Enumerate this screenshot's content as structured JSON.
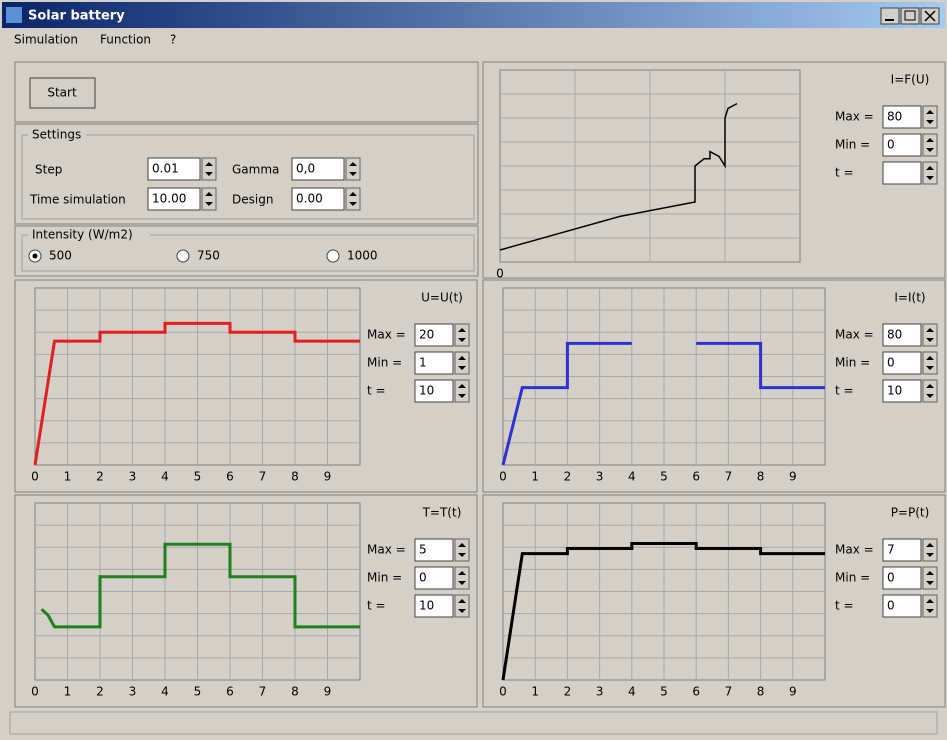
{
  "window": {
    "title": "Solar battery"
  },
  "menu": [
    "Simulation",
    "Function",
    "?"
  ],
  "start_button": "Start",
  "settings": {
    "title": "Settings",
    "fields": [
      {
        "label": "Step",
        "value": "0.01"
      },
      {
        "label": "Gamma",
        "value": "0,0"
      },
      {
        "label": "Time simulation",
        "value": "10.00"
      },
      {
        "label": "Design",
        "value": "0.00"
      }
    ]
  },
  "intensity": {
    "title": "Intensity (W/m2)",
    "options": [
      "500",
      "750",
      "1000"
    ],
    "selected": 0
  },
  "plots": [
    {
      "title": "I=F(U)",
      "color": "#000000",
      "xlim": [
        0,
        10
      ],
      "ylim": [
        0,
        80
      ],
      "xticks": [
        0
      ],
      "controls": [
        {
          "label": "Max =",
          "value": "80"
        },
        {
          "label": "Min =",
          "value": "0"
        },
        {
          "label": "t ="
        }
      ],
      "x": [
        0,
        2,
        4,
        6.5,
        6.5,
        6.5,
        6.8,
        7.0,
        7.0,
        7.3,
        7.5,
        7.5,
        7.6,
        7.9
      ],
      "y": [
        5,
        12,
        19,
        25,
        32,
        40,
        43,
        43,
        46,
        44,
        40,
        60,
        64,
        66
      ]
    },
    {
      "title": "U=U(t)",
      "color": "#e02020",
      "xlim": [
        0,
        10
      ],
      "ylim": [
        0,
        20
      ],
      "xticks": [
        0,
        1,
        2,
        3,
        4,
        5,
        6,
        7,
        8,
        9
      ],
      "controls": [
        {
          "label": "Max =",
          "value": "20"
        },
        {
          "label": "Min =",
          "value": "1"
        },
        {
          "label": "t =",
          "value": "10"
        }
      ],
      "x": [
        0,
        0.6,
        2,
        2,
        4,
        4,
        6,
        6,
        8,
        8,
        10
      ],
      "y": [
        0,
        14,
        14,
        15,
        15,
        16,
        16,
        15,
        15,
        14,
        14
      ]
    },
    {
      "title": "I=I(t)",
      "color": "#3030d0",
      "xlim": [
        0,
        10
      ],
      "ylim": [
        0,
        80
      ],
      "xticks": [
        0,
        1,
        2,
        3,
        4,
        5,
        6,
        7,
        8,
        9
      ],
      "controls": [
        {
          "label": "Max =",
          "value": "80"
        },
        {
          "label": "Min =",
          "value": "0"
        },
        {
          "label": "t =",
          "value": "10"
        }
      ],
      "x": [
        0,
        0.6,
        2,
        2,
        4,
        null,
        6,
        8,
        8,
        10
      ],
      "y": [
        0,
        35,
        35,
        55,
        55,
        null,
        55,
        55,
        35,
        35
      ]
    },
    {
      "title": "T=T(t)",
      "color": "#208020",
      "xlim": [
        0,
        10
      ],
      "ylim": [
        0,
        6
      ],
      "xticks": [
        0,
        1,
        2,
        3,
        4,
        5,
        6,
        7,
        8,
        9
      ],
      "controls": [
        {
          "label": "Max =",
          "value": "5"
        },
        {
          "label": "Min =",
          "value": "0"
        },
        {
          "label": "t =",
          "value": "10"
        }
      ],
      "x": [
        0.2,
        0.4,
        0.6,
        2,
        2,
        4,
        4,
        6,
        6,
        8,
        8,
        10
      ],
      "y": [
        2.4,
        2.2,
        1.8,
        1.8,
        3.5,
        3.5,
        4.6,
        4.6,
        3.5,
        3.5,
        1.8,
        1.8
      ]
    },
    {
      "title": "P=P(t)",
      "color": "#000000",
      "xlim": [
        0,
        10
      ],
      "ylim": [
        0,
        70
      ],
      "xticks": [
        0,
        1,
        2,
        3,
        4,
        5,
        6,
        7,
        8,
        9
      ],
      "controls": [
        {
          "label": "Max =",
          "value": "7"
        },
        {
          "label": "Min =",
          "value": "0"
        },
        {
          "label": "t =",
          "value": "0"
        }
      ],
      "x": [
        0,
        0.6,
        2,
        2,
        4,
        4,
        6,
        6,
        8,
        8,
        10
      ],
      "y": [
        0,
        50,
        50,
        52,
        52,
        54,
        54,
        52,
        52,
        50,
        50
      ]
    }
  ]
}
